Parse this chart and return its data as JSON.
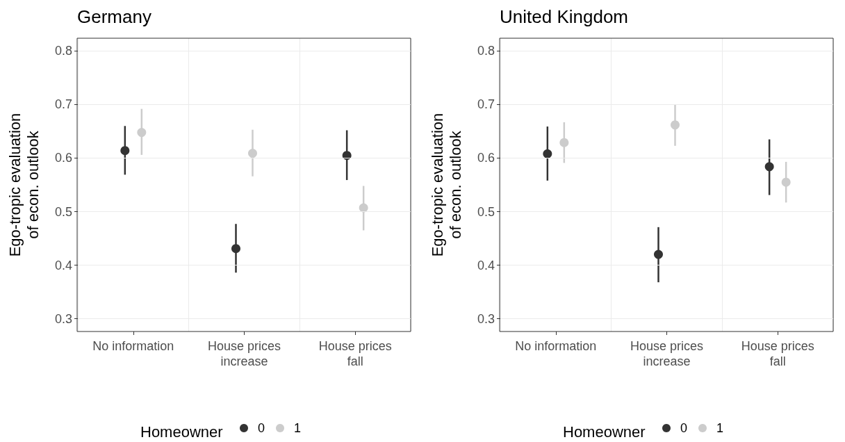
{
  "chart_data": [
    {
      "type": "scatter",
      "title": "Germany",
      "ylabel": "Ego-tropic evaluation\nof econ. outlook",
      "legend_title": "Homeowner",
      "categories": [
        "No information",
        "House prices\nincrease",
        "House prices\nfall"
      ],
      "ylim": [
        0.276,
        0.824
      ],
      "yticks": [
        0.3,
        0.4,
        0.5,
        0.6,
        0.7,
        0.8
      ],
      "grid": true,
      "legend": "bottom",
      "marker": "circle",
      "series": [
        {
          "name": "0",
          "color": "#333333",
          "values": [
            0.614,
            0.431,
            0.605
          ],
          "errors": [
            [
              0.569,
              0.66
            ],
            [
              0.386,
              0.477
            ],
            [
              0.559,
              0.652
            ]
          ]
        },
        {
          "name": "1",
          "color": "#cccccc",
          "values": [
            0.648,
            0.609,
            0.507
          ],
          "errors": [
            [
              0.606,
              0.692
            ],
            [
              0.566,
              0.653
            ],
            [
              0.465,
              0.548
            ]
          ]
        }
      ]
    },
    {
      "type": "scatter",
      "title": "United Kingdom",
      "ylabel": "Ego-tropic evaluation\nof econ. outlook",
      "legend_title": "Homeowner",
      "categories": [
        "No information",
        "House prices\nincrease",
        "House prices\nfall"
      ],
      "ylim": [
        0.276,
        0.824
      ],
      "yticks": [
        0.3,
        0.4,
        0.5,
        0.6,
        0.7,
        0.8
      ],
      "grid": true,
      "legend": "bottom",
      "marker": "circle",
      "series": [
        {
          "name": "0",
          "color": "#333333",
          "values": [
            0.608,
            0.42,
            0.584
          ],
          "errors": [
            [
              0.558,
              0.659
            ],
            [
              0.368,
              0.471
            ],
            [
              0.531,
              0.635
            ]
          ]
        },
        {
          "name": "1",
          "color": "#cccccc",
          "values": [
            0.629,
            0.662,
            0.555
          ],
          "errors": [
            [
              0.591,
              0.667
            ],
            [
              0.623,
              0.7
            ],
            [
              0.517,
              0.593
            ]
          ]
        }
      ]
    }
  ]
}
